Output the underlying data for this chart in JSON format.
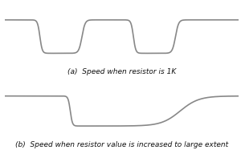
{
  "title_a": "(a)  Speed when resistor is 1K",
  "title_b": "(b)  Speed when resistor value is increased to large extent",
  "line_color": "#888888",
  "line_width": 1.2,
  "bg_color": "#ffffff",
  "fig_bg": "#ffffff",
  "title_fontsize": 6.5
}
